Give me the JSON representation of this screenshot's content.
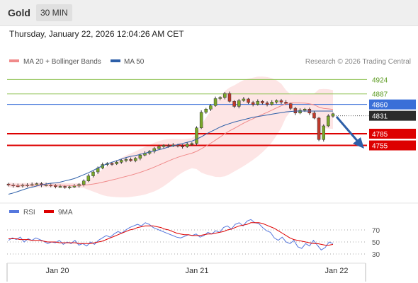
{
  "header": {
    "symbol": "Gold",
    "interval": "30 MIN"
  },
  "timestamp": "Thursday, January 22, 2026 12:04:26 AM CET",
  "legend": {
    "ma20": {
      "label": "MA 20 + Bollinger Bands",
      "color": "#f08a8a"
    },
    "ma50": {
      "label": "MA 50",
      "color": "#2d5fa8"
    }
  },
  "credit": "Research © 2026 Trading Central",
  "levels": [
    {
      "label": "4924",
      "value": 4924,
      "type": "resistance",
      "color": "#8cc04e"
    },
    {
      "label": "4887",
      "value": 4887,
      "type": "resistance",
      "color": "#8cc04e"
    },
    {
      "label": "4860",
      "value": 4860,
      "type": "pivot",
      "color": "#3a6fd8"
    },
    {
      "label": "4785",
      "value": 4785,
      "type": "support",
      "color": "#dd0000"
    },
    {
      "label": "4755",
      "value": 4755,
      "type": "support",
      "color": "#dd0000"
    }
  ],
  "last_price": {
    "label": "4831",
    "value": 4831
  },
  "rsi_panel": {
    "rsi": {
      "label": "RSI",
      "color": "#5577dd"
    },
    "ma9": {
      "label": "9MA",
      "color": "#dd0000"
    },
    "ticks": [
      "70",
      "50",
      "30"
    ]
  },
  "x_axis": {
    "labels": [
      "Jan 20",
      "Jan 21",
      "Jan 22"
    ]
  },
  "chart_data": {
    "type": "line",
    "series": [
      {
        "name": "MA 20 + Bollinger Bands",
        "style": "band-and-line"
      },
      {
        "name": "MA 50",
        "style": "line"
      }
    ],
    "price_approx": [
      4654,
      4652,
      4651,
      4654,
      4653,
      4655,
      4657,
      4653,
      4654,
      4652,
      4650,
      4650,
      4648,
      4649,
      4651,
      4655,
      4664,
      4677,
      4687,
      4697,
      4706,
      4709,
      4708,
      4712,
      4717,
      4719,
      4716,
      4722,
      4730,
      4735,
      4740,
      4747,
      4752,
      4755,
      4754,
      4756,
      4754,
      4752,
      4758,
      4760,
      4800,
      4840,
      4848,
      4857,
      4875,
      4878,
      4888,
      4868,
      4855,
      4870,
      4874,
      4865,
      4860,
      4868,
      4864,
      4860,
      4866,
      4870,
      4866,
      4862,
      4850,
      4838,
      4845,
      4848,
      4838,
      4825,
      4770,
      4805,
      4830,
      4836
    ],
    "ma50_approx": [
      4630,
      4633,
      4637,
      4641,
      4645,
      4648,
      4651,
      4654,
      4656,
      4658,
      4659,
      4661,
      4664,
      4667,
      4670,
      4675,
      4680,
      4685,
      4691,
      4697,
      4703,
      4708,
      4712,
      4716,
      4720,
      4724,
      4727,
      4729,
      4732,
      4735,
      4738,
      4741,
      4744,
      4747,
      4751,
      4754,
      4757,
      4760,
      4763,
      4766,
      4771,
      4777,
      4784,
      4790,
      4796,
      4802,
      4807,
      4811,
      4815,
      4818,
      4821,
      4824,
      4827,
      4829,
      4831,
      4833,
      4835,
      4837,
      4839,
      4841,
      4842,
      4843,
      4843,
      4843,
      4843,
      4843,
      4843,
      4843,
      4843,
      4843
    ],
    "rsi_approx": [
      52,
      55,
      53,
      56,
      50,
      54,
      52,
      55,
      53,
      51,
      48,
      50,
      49,
      52,
      47,
      50,
      48,
      52,
      46,
      48,
      45,
      50,
      47,
      52,
      55,
      58,
      56,
      60,
      63,
      61,
      65,
      68,
      70,
      72,
      70,
      74,
      72,
      68,
      66,
      64,
      62,
      60,
      58,
      56,
      55,
      57,
      59,
      58,
      60,
      56,
      58,
      62,
      60,
      64,
      62,
      68,
      70,
      66,
      72,
      74,
      70,
      76,
      78,
      74,
      73,
      68,
      64,
      62,
      55,
      52,
      56,
      50,
      48,
      52,
      44,
      42,
      48,
      45,
      52,
      46,
      40,
      43,
      50,
      48
    ],
    "ma9_approx": [
      54,
      54,
      54,
      53,
      53,
      53,
      52,
      52,
      52,
      51,
      50,
      50,
      50,
      49,
      49,
      49,
      49,
      49,
      48,
      48,
      48,
      48,
      49,
      50,
      51,
      53,
      55,
      57,
      59,
      61,
      63,
      65,
      66,
      68,
      69,
      70,
      70,
      70,
      69,
      68,
      66,
      65,
      63,
      61,
      60,
      59,
      59,
      58,
      58,
      58,
      59,
      60,
      60,
      61,
      62,
      63,
      65,
      66,
      68,
      70,
      71,
      72,
      74,
      74,
      74,
      73,
      71,
      69,
      67,
      64,
      61,
      58,
      55,
      53,
      52,
      51,
      50,
      49,
      48,
      48,
      47,
      46,
      46,
      47
    ],
    "ylim": [
      4620,
      4950
    ],
    "rsi_ylim": [
      20,
      80
    ]
  }
}
